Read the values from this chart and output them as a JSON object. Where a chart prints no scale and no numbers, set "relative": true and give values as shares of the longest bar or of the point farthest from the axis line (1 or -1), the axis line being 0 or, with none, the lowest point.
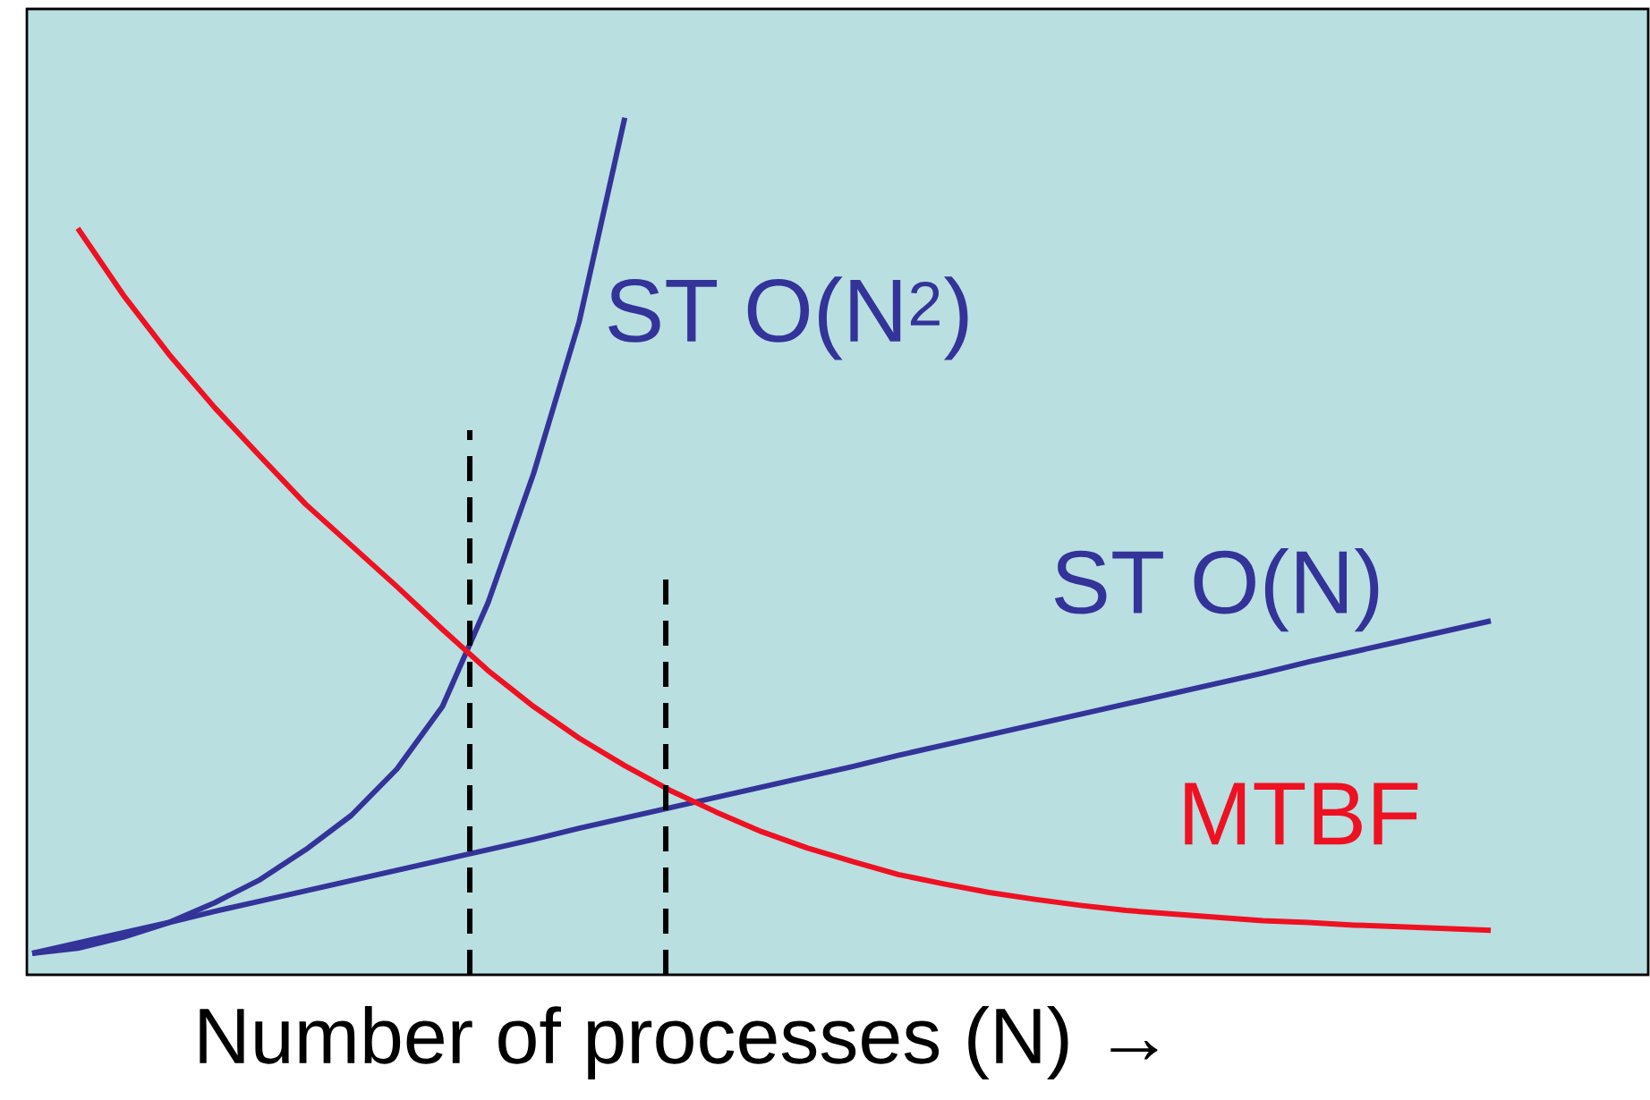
{
  "chart_data": {
    "type": "line",
    "relative": true,
    "marker": "none",
    "line_style": "solid",
    "xlabel": "Number of processes (N) →",
    "categories": [
      null,
      null,
      null,
      null,
      null,
      null,
      null,
      null,
      null,
      null,
      null,
      null,
      null,
      null,
      null,
      null,
      null,
      null,
      null,
      null,
      null,
      null,
      null,
      null,
      null,
      null,
      null,
      null,
      null,
      null,
      null,
      null,
      null
    ],
    "series": [
      {
        "name": "ST O(N$^{2}$)",
        "color": "#333399",
        "values": [
          0.025,
          0.031,
          0.044,
          0.061,
          0.084,
          0.111,
          0.146,
          0.186,
          0.24,
          0.313,
          0.434,
          0.585,
          0.762,
          1.0,
          null,
          null,
          null,
          null,
          null,
          null,
          null,
          null,
          null,
          null,
          null,
          null,
          null,
          null,
          null,
          null,
          null,
          null,
          null
        ]
      },
      {
        "name": "ST O(N)",
        "color": "#333399",
        "values": [
          0.025,
          0.037,
          0.049,
          0.061,
          0.074,
          0.086,
          0.098,
          0.11,
          0.122,
          0.134,
          0.146,
          0.158,
          0.171,
          0.183,
          0.195,
          0.207,
          0.219,
          0.231,
          0.243,
          0.256,
          0.268,
          0.28,
          0.292,
          0.304,
          0.316,
          0.328,
          0.34,
          0.352,
          0.365,
          0.377,
          0.389,
          0.401,
          0.413
        ]
      },
      {
        "name": "MTBF",
        "color": "#ee1122",
        "values": [
          null,
          0.871,
          0.793,
          0.724,
          0.662,
          0.605,
          0.549,
          0.501,
          0.453,
          0.403,
          0.355,
          0.313,
          0.276,
          0.244,
          0.215,
          0.19,
          0.167,
          0.148,
          0.132,
          0.117,
          0.106,
          0.096,
          0.088,
          0.081,
          0.075,
          0.071,
          0.067,
          0.063,
          0.061,
          0.058,
          0.056,
          0.054,
          0.052
        ]
      }
    ]
  }
}
